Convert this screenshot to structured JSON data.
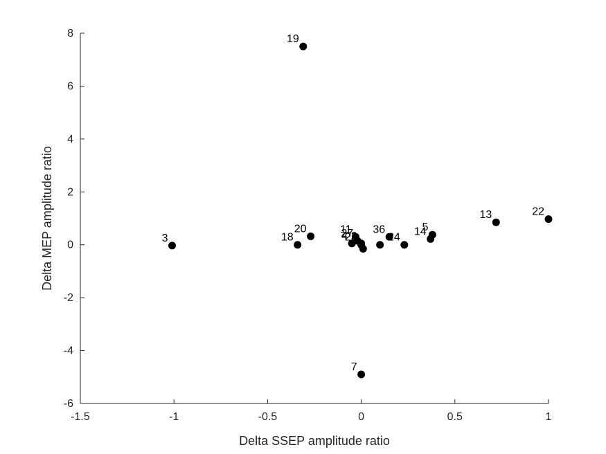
{
  "chart_data": {
    "type": "scatter",
    "xlabel": "Delta SSEP amplitude ratio",
    "ylabel": "Delta MEP amplitude ratio",
    "xlim": [
      -1.5,
      1.0
    ],
    "ylim": [
      -6,
      8
    ],
    "xticks": [
      -1.5,
      -1,
      -0.5,
      0,
      0.5,
      1
    ],
    "xtick_labels": [
      "-1.5",
      "-1",
      "-0.5",
      "0",
      "0.5",
      "1"
    ],
    "yticks": [
      -6,
      -4,
      -2,
      0,
      2,
      4,
      6,
      8
    ],
    "ytick_labels": [
      "-6",
      "-4",
      "-2",
      "0",
      "2",
      "4",
      "6",
      "8"
    ],
    "grid": false,
    "marker_color": "#000000",
    "points": [
      {
        "label": "19",
        "x": -0.31,
        "y": 7.5
      },
      {
        "label": "3",
        "x": -1.01,
        "y": -0.03
      },
      {
        "label": "18",
        "x": -0.34,
        "y": 0.0
      },
      {
        "label": "20",
        "x": -0.27,
        "y": 0.32
      },
      {
        "label": "11",
        "x": -0.03,
        "y": 0.3
      },
      {
        "label": "4",
        "x": -0.05,
        "y": 0.05
      },
      {
        "label": "27",
        "x": -0.02,
        "y": 0.15
      },
      {
        "label": "2",
        "x": 0.0,
        "y": 0.05
      },
      {
        "label": "",
        "x": 0.01,
        "y": -0.15
      },
      {
        "label": "21",
        "x": 0.0,
        "y": 0.0
      },
      {
        "label": "36",
        "x": 0.15,
        "y": 0.3
      },
      {
        "label": "",
        "x": 0.1,
        "y": 0.0
      },
      {
        "label": "24",
        "x": 0.23,
        "y": 0.0
      },
      {
        "label": "14",
        "x": 0.37,
        "y": 0.22
      },
      {
        "label": "5",
        "x": 0.38,
        "y": 0.38
      },
      {
        "label": "13",
        "x": 0.72,
        "y": 0.85
      },
      {
        "label": "22",
        "x": 1.0,
        "y": 0.97
      },
      {
        "label": "7",
        "x": 0.0,
        "y": -4.9
      }
    ]
  }
}
